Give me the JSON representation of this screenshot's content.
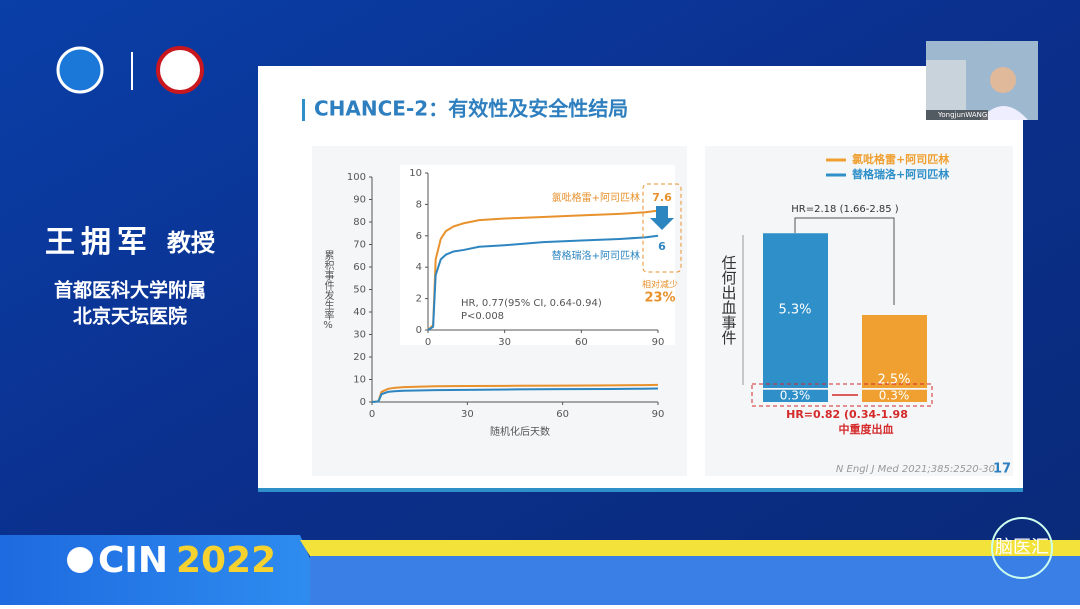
{
  "speaker": {
    "name": "王拥军",
    "title": "教授",
    "affiliation": [
      "首都医科大学附属",
      "北京天坛医院"
    ]
  },
  "banner": {
    "event": "CIN",
    "year": "2022",
    "brand": "脑医汇"
  },
  "video": {
    "name": "YongjunWANG"
  },
  "slide": {
    "title": "CHANCE-2：有效性及安全性结局",
    "page": "17",
    "citation": "N Engl J Med 2021;385:2520-30",
    "efficacy_chart": {
      "type": "line",
      "y_label": "累积事件发生率",
      "y_unit": "%",
      "x_label": "随机化后天数",
      "xlim": [
        0,
        90
      ],
      "xticks": [
        0,
        30,
        60,
        90
      ],
      "ylim": [
        0,
        100
      ],
      "yticks": [
        0,
        10,
        20,
        30,
        40,
        50,
        60,
        70,
        80,
        90,
        100
      ],
      "inset": {
        "xlim": [
          0,
          90
        ],
        "xticks": [
          0,
          30,
          60,
          90
        ],
        "ylim": [
          0,
          10
        ],
        "yticks": [
          0,
          2,
          4,
          6,
          8,
          10
        ]
      },
      "x": [
        0,
        2,
        3,
        5,
        7,
        10,
        14,
        20,
        30,
        45,
        60,
        75,
        85,
        90
      ],
      "series": [
        {
          "name": "氯吡格雷+阿司匹林",
          "color": "#e8912d",
          "values": [
            0,
            0.3,
            4.5,
            5.8,
            6.3,
            6.6,
            6.8,
            7.0,
            7.1,
            7.2,
            7.3,
            7.4,
            7.5,
            7.6
          ],
          "end_value": 7.6
        },
        {
          "name": "替格瑞洛+阿司匹林",
          "color": "#2e86c1",
          "values": [
            0,
            0.2,
            3.5,
            4.5,
            4.8,
            5.0,
            5.1,
            5.3,
            5.4,
            5.6,
            5.7,
            5.8,
            5.9,
            6.0
          ],
          "end_value": 6.0
        }
      ],
      "annotations": {
        "reduction_label": "相对减少",
        "reduction": "23%",
        "hr": "HR, 0.77(95% CI, 0.64-0.94)",
        "p": "P<0.008"
      }
    },
    "safety_chart": {
      "type": "bar",
      "y_label": "任何出血事件",
      "series": [
        {
          "name": "氯吡格雷+阿司匹林",
          "color": "#f0a030",
          "values": [
            2.5,
            0.3
          ],
          "value_labels": [
            "2.5%",
            "0.3%"
          ]
        },
        {
          "name": "替格瑞洛+阿司匹林",
          "color": "#2e8fc9",
          "values": [
            5.3,
            0.3
          ],
          "value_labels": [
            "5.3%",
            "0.3%"
          ]
        }
      ],
      "hr_any": "HR=2.18 (1.66-2.85 )",
      "hr_moderate": "HR=0.82 (0.34-1.98",
      "moderate_label": "中重度出血"
    }
  }
}
